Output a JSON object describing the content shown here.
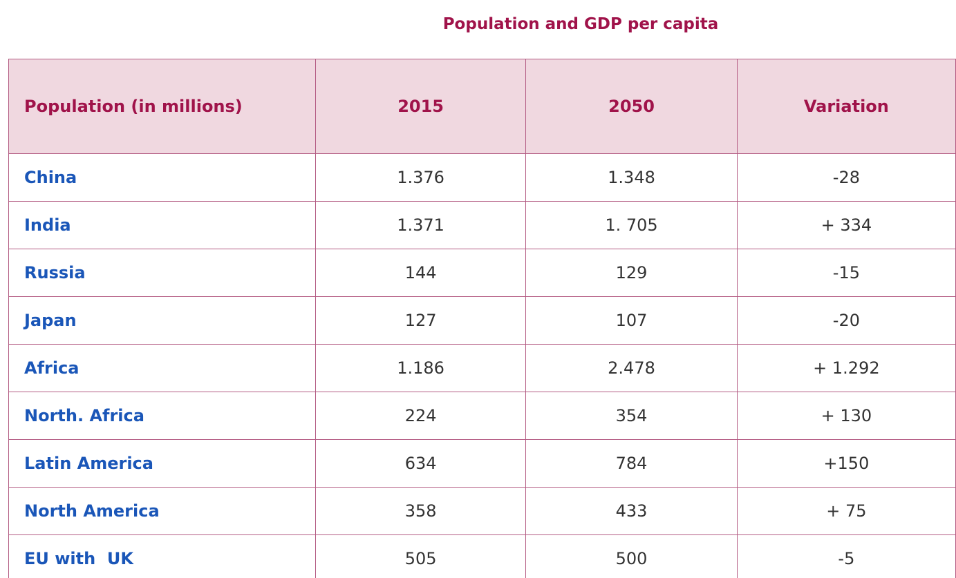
{
  "title": "Population and GDP per capita",
  "table": {
    "header": [
      "Population (in millions)",
      "2015",
      "2050",
      "Variation"
    ],
    "rows": [
      [
        "China",
        "1.376",
        "1.348",
        "-28"
      ],
      [
        "India",
        "1.371",
        "1. 705",
        "+ 334"
      ],
      [
        "Russia",
        "144",
        "129",
        "-15"
      ],
      [
        "Japan",
        "127",
        "107",
        "-20"
      ],
      [
        "Africa",
        "1.186",
        "2.478",
        "+ 1.292"
      ],
      [
        "North. Africa",
        "224",
        "354",
        "+ 130"
      ],
      [
        "Latin America",
        "634",
        "784",
        "+150"
      ],
      [
        "North America",
        "358",
        "433",
        "+ 75"
      ],
      [
        "EU with  UK",
        "505",
        "500",
        "-5"
      ]
    ]
  }
}
